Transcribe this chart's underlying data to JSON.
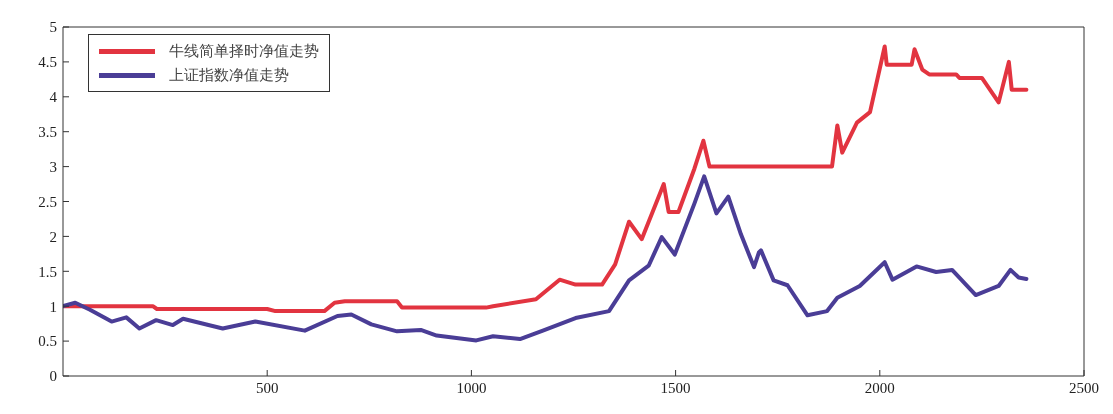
{
  "chart_data": {
    "type": "line",
    "xlim": [
      0,
      2500
    ],
    "xticks": [
      500,
      1000,
      1500,
      2000,
      2500
    ],
    "ylim": [
      0,
      5
    ],
    "yticks": [
      0,
      0.5,
      1,
      1.5,
      2,
      2.5,
      3,
      3.5,
      4,
      4.5,
      5
    ],
    "legend": "top left",
    "marker": "none",
    "line_style": "solid",
    "series": [
      {
        "name": "牛线简单择时净值走势",
        "color": "#e23440",
        "x": [
          0,
          220,
          230,
          500,
          520,
          640,
          665,
          690,
          818,
          830,
          1036,
          1053,
          1158,
          1216,
          1255,
          1320,
          1352,
          1386,
          1417,
          1471,
          1483,
          1507,
          1546,
          1568,
          1583,
          1883,
          1896,
          1908,
          1944,
          1976,
          2012,
          2017,
          2078,
          2085,
          2104,
          2121,
          2187,
          2195,
          2250,
          2291,
          2316,
          2323,
          2359
        ],
        "values": [
          1.0,
          1.0,
          0.96,
          0.96,
          0.93,
          0.93,
          1.05,
          1.07,
          1.07,
          0.98,
          0.98,
          1.0,
          1.1,
          1.38,
          1.31,
          1.31,
          1.6,
          2.21,
          1.96,
          2.75,
          2.35,
          2.35,
          2.97,
          3.37,
          3.0,
          3.0,
          3.59,
          3.2,
          3.63,
          3.78,
          4.72,
          4.46,
          4.46,
          4.68,
          4.39,
          4.32,
          4.32,
          4.27,
          4.27,
          3.92,
          4.5,
          4.1,
          4.1
        ]
      },
      {
        "name": "上证指数净值走势",
        "color": "#4a3d96",
        "x": [
          0,
          30,
          66,
          119,
          155,
          187,
          228,
          269,
          294,
          391,
          471,
          592,
          672,
          706,
          755,
          818,
          876,
          915,
          1012,
          1053,
          1119,
          1175,
          1255,
          1337,
          1386,
          1434,
          1466,
          1498,
          1546,
          1570,
          1600,
          1629,
          1660,
          1692,
          1704,
          1709,
          1740,
          1774,
          1823,
          1871,
          1896,
          1951,
          2012,
          2031,
          2090,
          2138,
          2177,
          2235,
          2291,
          2320,
          2340,
          2359
        ],
        "values": [
          1.0,
          1.05,
          0.95,
          0.78,
          0.84,
          0.68,
          0.8,
          0.73,
          0.82,
          0.68,
          0.78,
          0.65,
          0.86,
          0.88,
          0.74,
          0.64,
          0.66,
          0.58,
          0.51,
          0.57,
          0.53,
          0.65,
          0.83,
          0.93,
          1.37,
          1.58,
          1.99,
          1.74,
          2.47,
          2.86,
          2.33,
          2.57,
          2.03,
          1.56,
          1.77,
          1.8,
          1.37,
          1.3,
          0.87,
          0.93,
          1.12,
          1.29,
          1.63,
          1.38,
          1.57,
          1.49,
          1.52,
          1.16,
          1.29,
          1.52,
          1.41,
          1.39
        ]
      }
    ]
  }
}
